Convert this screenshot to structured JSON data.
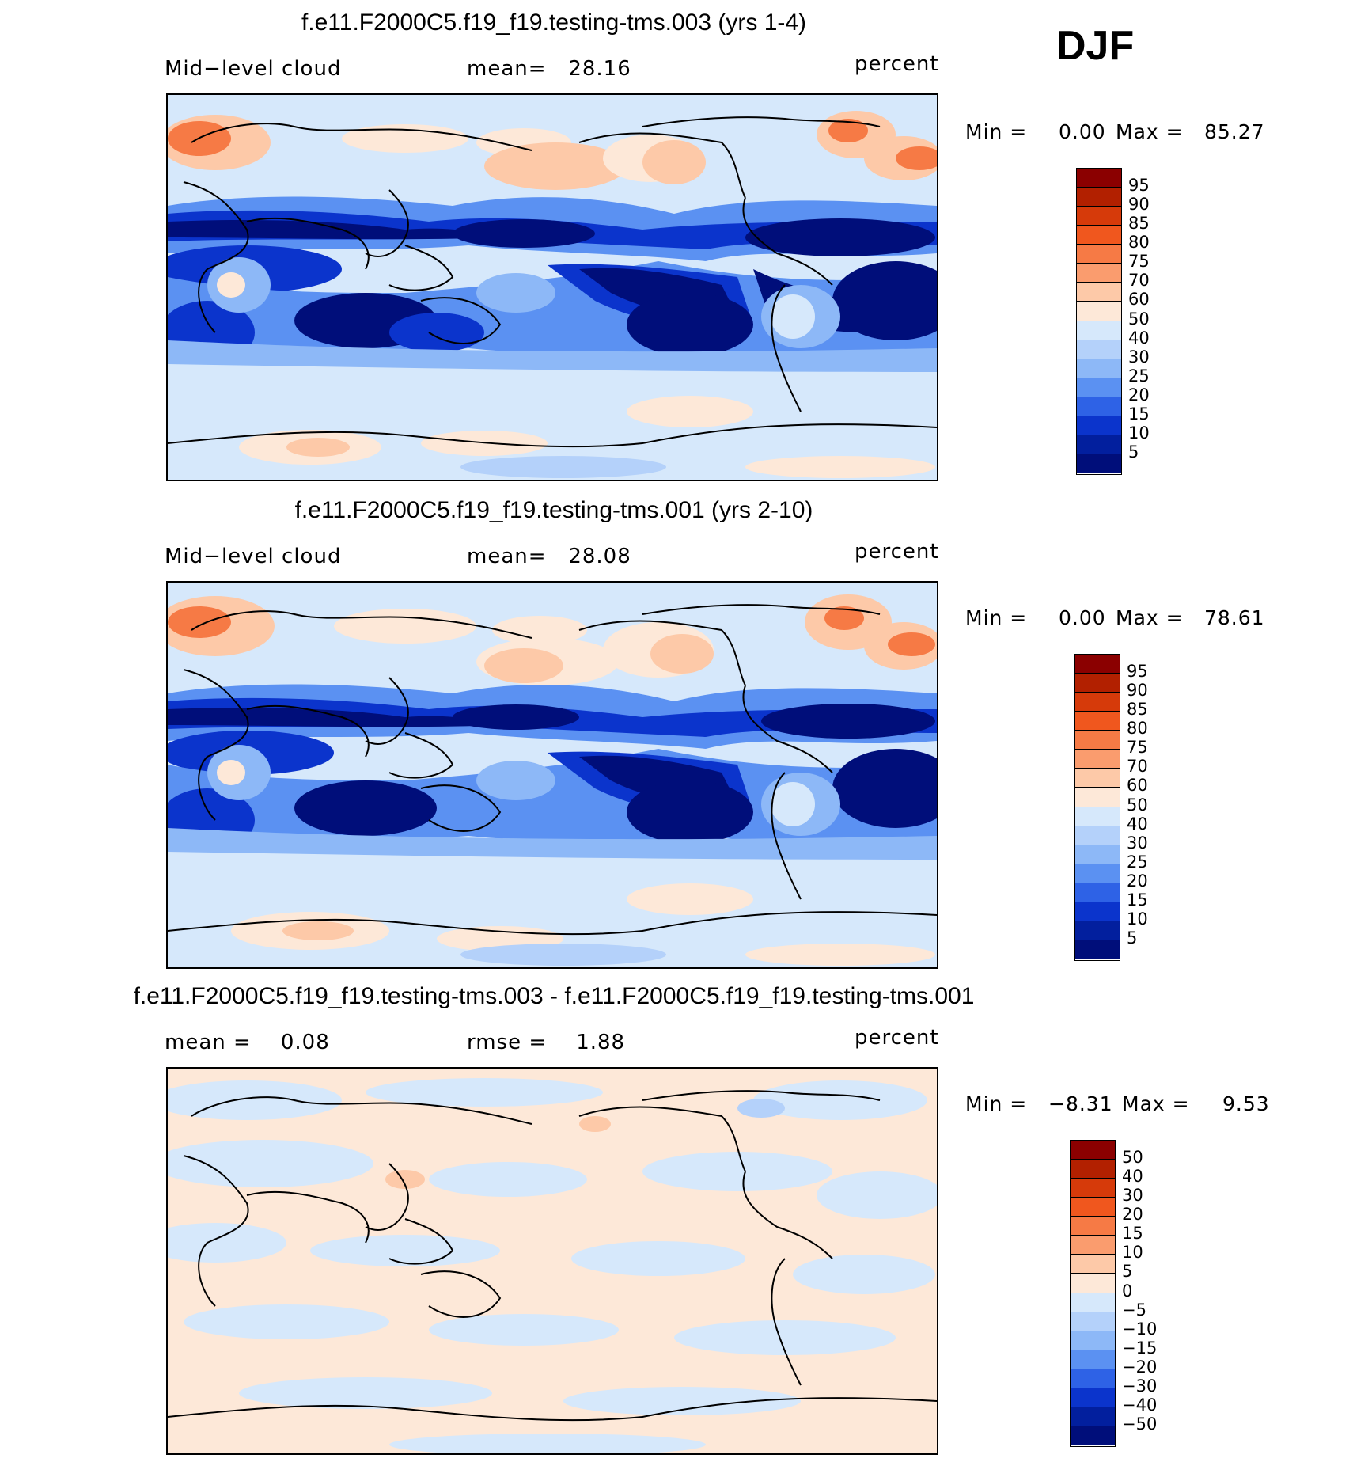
{
  "season": "DJF",
  "panels": [
    {
      "title": "f.e11.F2000C5.f19_f19.testing-tms.003 (yrs 1-4)",
      "left_label": "Mid−level cloud",
      "center_label": "mean=   28.16",
      "units": "percent",
      "min_label": "Min =",
      "min_value": "0.00",
      "max_label": "Max =",
      "max_value": "85.27",
      "colorbar": [
        "95",
        "90",
        "85",
        "80",
        "75",
        "70",
        "60",
        "50",
        "40",
        "30",
        "25",
        "20",
        "15",
        "10",
        "5"
      ]
    },
    {
      "title": "f.e11.F2000C5.f19_f19.testing-tms.001 (yrs 2-10)",
      "left_label": "Mid−level cloud",
      "center_label": "mean=   28.08",
      "units": "percent",
      "min_label": "Min =",
      "min_value": "0.00",
      "max_label": "Max =",
      "max_value": "78.61",
      "colorbar": [
        "95",
        "90",
        "85",
        "80",
        "75",
        "70",
        "60",
        "50",
        "40",
        "30",
        "25",
        "20",
        "15",
        "10",
        "5"
      ]
    },
    {
      "title": "f.e11.F2000C5.f19_f19.testing-tms.003 - f.e11.F2000C5.f19_f19.testing-tms.001",
      "left_label": "mean =    0.08",
      "center_label": "rmse =    1.88",
      "units": "percent",
      "min_label": "Min =",
      "min_value": "−8.31",
      "max_label": "Max =",
      "max_value": "9.53",
      "colorbar": [
        "50",
        "40",
        "30",
        "20",
        "15",
        "10",
        "5",
        "0",
        "−5",
        "−10",
        "−15",
        "−20",
        "−30",
        "−40",
        "−50"
      ]
    }
  ],
  "colors": {
    "abs_scale": [
      "#8b0000",
      "#b22000",
      "#d63a0a",
      "#f0571e",
      "#f67a45",
      "#fa9c6e",
      "#fdc9a8",
      "#fde8d8",
      "#d6e8fb",
      "#b4d1fa",
      "#8db8f7",
      "#5b91f2",
      "#2e62e6",
      "#0b34cc",
      "#021f9e",
      "#000e7a"
    ],
    "diff_scale": [
      "#8b0000",
      "#b22000",
      "#d63a0a",
      "#f0571e",
      "#f67a45",
      "#fa9c6e",
      "#fdc9a8",
      "#fde8d8",
      "#d6e8fb",
      "#b4d1fa",
      "#8db8f7",
      "#5b91f2",
      "#2e62e6",
      "#0b34cc",
      "#021f9e",
      "#000e7a"
    ]
  }
}
